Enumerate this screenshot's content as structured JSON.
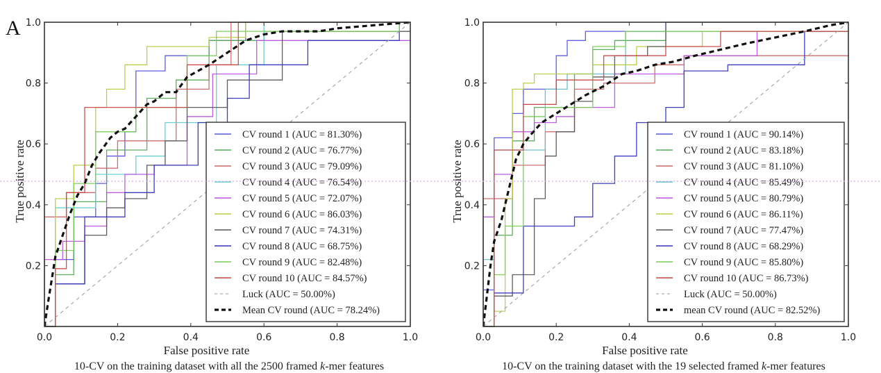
{
  "figure": {
    "panel_letter": "A",
    "artifact_line_colors": [
      "#e6a0e6",
      "#a0e6a0",
      "#a0a0ff",
      "#ffb0b0"
    ]
  },
  "chart_data": [
    {
      "type": "line",
      "title": "",
      "caption_parts": [
        "10-CV on the training dataset with all the 2500 framed ",
        "k",
        "-mer features"
      ],
      "xlabel": "False positive rate",
      "ylabel": "True positive rate",
      "xlim": [
        0.0,
        1.0
      ],
      "ylim": [
        0.0,
        1.0
      ],
      "xticks": [
        "0.0",
        "0.2",
        "0.4",
        "0.6",
        "0.8",
        "1.0"
      ],
      "yticks": [
        "0.2",
        "0.4",
        "0.6",
        "0.8",
        "1.0"
      ],
      "grid": false,
      "legend_position": "lower-right",
      "series": [
        {
          "name": "CV round 1 (AUC = 81.30%)",
          "color": "#5555dd",
          "style": "solid",
          "x": [
            0,
            0.03,
            0.03,
            0.08,
            0.08,
            0.14,
            0.14,
            0.17,
            0.17,
            0.22,
            0.22,
            0.25,
            0.25,
            0.33,
            0.33,
            0.45,
            0.45,
            0.55,
            0.55,
            1.0
          ],
          "y": [
            0,
            0,
            0.22,
            0.22,
            0.36,
            0.36,
            0.47,
            0.47,
            0.56,
            0.56,
            0.64,
            0.64,
            0.84,
            0.84,
            0.89,
            0.89,
            0.94,
            0.94,
            1.0,
            1.0
          ]
        },
        {
          "name": "CV round 2 (AUC = 76.77%)",
          "color": "#55aa55",
          "style": "solid",
          "x": [
            0,
            0.03,
            0.03,
            0.08,
            0.08,
            0.17,
            0.17,
            0.28,
            0.28,
            0.36,
            0.36,
            0.45,
            0.45,
            0.6,
            0.6,
            1.0
          ],
          "y": [
            0,
            0,
            0.17,
            0.17,
            0.41,
            0.41,
            0.58,
            0.58,
            0.75,
            0.75,
            0.81,
            0.81,
            0.94,
            0.94,
            0.97,
            0.97
          ]
        },
        {
          "name": "CV round 3 (AUC = 79.09%)",
          "color": "#cc6666",
          "style": "solid",
          "x": [
            0,
            0,
            0.06,
            0.06,
            0.14,
            0.14,
            0.2,
            0.2,
            0.36,
            0.36,
            0.45,
            0.45,
            0.51,
            0.51,
            1.0
          ],
          "y": [
            0,
            0.36,
            0.36,
            0.44,
            0.44,
            0.52,
            0.52,
            0.61,
            0.61,
            0.78,
            0.78,
            0.86,
            0.86,
            1.0,
            1.0
          ]
        },
        {
          "name": "CV round 4 (AUC = 76.54%)",
          "color": "#66cccc",
          "style": "solid",
          "x": [
            0,
            0.03,
            0.03,
            0.14,
            0.14,
            0.25,
            0.25,
            0.33,
            0.33,
            0.47,
            0.47,
            0.6,
            0.6,
            1.0
          ],
          "y": [
            0,
            0,
            0.39,
            0.39,
            0.5,
            0.5,
            0.56,
            0.56,
            0.67,
            0.67,
            0.86,
            0.86,
            1.0,
            1.0
          ]
        },
        {
          "name": "CV round 5 (AUC = 72.07%)",
          "color": "#bb55dd",
          "style": "solid",
          "x": [
            0,
            0,
            0.05,
            0.05,
            0.11,
            0.11,
            0.17,
            0.17,
            0.22,
            0.22,
            0.3,
            0.3,
            0.39,
            0.39,
            0.46,
            0.46,
            0.58,
            0.58,
            1.0
          ],
          "y": [
            0,
            0.22,
            0.22,
            0.28,
            0.28,
            0.33,
            0.33,
            0.44,
            0.44,
            0.5,
            0.5,
            0.53,
            0.53,
            0.69,
            0.69,
            0.83,
            0.83,
            0.94,
            0.94
          ]
        },
        {
          "name": "CV round 6 (AUC = 86.03%)",
          "color": "#bbcc44",
          "style": "solid",
          "x": [
            0,
            0.03,
            0.03,
            0.08,
            0.08,
            0.14,
            0.14,
            0.17,
            0.17,
            0.22,
            0.22,
            0.28,
            0.28,
            0.45,
            0.45,
            0.55,
            0.55,
            1.0
          ],
          "y": [
            0,
            0,
            0.42,
            0.42,
            0.53,
            0.53,
            0.72,
            0.72,
            0.78,
            0.78,
            0.86,
            0.86,
            0.92,
            0.92,
            0.95,
            0.95,
            1.0,
            1.0
          ]
        },
        {
          "name": "CV round 7 (AUC = 74.31%)",
          "color": "#555555",
          "style": "solid",
          "x": [
            0,
            0.03,
            0.03,
            0.11,
            0.11,
            0.17,
            0.17,
            0.22,
            0.22,
            0.28,
            0.28,
            0.33,
            0.33,
            0.39,
            0.39,
            0.5,
            0.5,
            0.65,
            0.65,
            1.0
          ],
          "y": [
            0,
            0,
            0.14,
            0.14,
            0.3,
            0.3,
            0.39,
            0.39,
            0.42,
            0.42,
            0.53,
            0.53,
            0.61,
            0.61,
            0.72,
            0.72,
            0.81,
            0.81,
            0.97,
            0.97
          ]
        },
        {
          "name": "CV round 8 (AUC = 68.75%)",
          "color": "#3333bb",
          "style": "solid",
          "x": [
            0,
            0.03,
            0.03,
            0.11,
            0.11,
            0.22,
            0.22,
            0.3,
            0.3,
            0.42,
            0.42,
            0.5,
            0.5,
            0.56,
            0.56,
            0.72,
            0.72,
            0.97,
            0.97
          ],
          "y": [
            0,
            0,
            0.14,
            0.14,
            0.36,
            0.36,
            0.44,
            0.44,
            0.53,
            0.53,
            0.67,
            0.67,
            0.75,
            0.75,
            0.86,
            0.86,
            0.94,
            0.94,
            1.0
          ]
        },
        {
          "name": "CV round 9 (AUC = 82.48%)",
          "color": "#77cc55",
          "style": "solid",
          "x": [
            0,
            0.03,
            0.03,
            0.08,
            0.08,
            0.14,
            0.14,
            0.25,
            0.25,
            0.39,
            0.39,
            0.47,
            0.47,
            0.97,
            0.97
          ],
          "y": [
            0,
            0,
            0.25,
            0.25,
            0.47,
            0.47,
            0.64,
            0.64,
            0.72,
            0.72,
            0.89,
            0.89,
            0.97,
            0.97,
            1.0
          ]
        },
        {
          "name": "CV round 10 (AUC = 84.57%)",
          "color": "#cc4444",
          "style": "solid",
          "x": [
            0,
            0.03,
            0.03,
            0.06,
            0.06,
            0.11,
            0.11,
            0.2,
            0.2,
            0.39,
            0.39,
            0.53,
            0.53,
            1.0
          ],
          "y": [
            0,
            0,
            0.19,
            0.19,
            0.44,
            0.44,
            0.72,
            0.72,
            0.72,
            0.72,
            0.86,
            0.86,
            1.0,
            1.0
          ]
        },
        {
          "name": "Luck (AUC = 50.00%)",
          "color": "#999999",
          "style": "dashed-thin",
          "x": [
            0,
            1
          ],
          "y": [
            0,
            1
          ]
        },
        {
          "name": "Mean CV round (AUC = 78.24%)",
          "color": "#111111",
          "style": "dashed-thick",
          "x": [
            0,
            0.01,
            0.03,
            0.05,
            0.07,
            0.09,
            0.11,
            0.13,
            0.15,
            0.18,
            0.2,
            0.22,
            0.25,
            0.28,
            0.3,
            0.33,
            0.36,
            0.39,
            0.42,
            0.45,
            0.5,
            0.55,
            0.6,
            0.65,
            0.7,
            0.75,
            0.8,
            0.9,
            1.0
          ],
          "y": [
            0,
            0.08,
            0.23,
            0.3,
            0.37,
            0.43,
            0.47,
            0.53,
            0.57,
            0.62,
            0.64,
            0.65,
            0.69,
            0.73,
            0.74,
            0.77,
            0.77,
            0.82,
            0.84,
            0.86,
            0.9,
            0.94,
            0.96,
            0.97,
            0.97,
            0.97,
            0.98,
            0.99,
            1.0
          ]
        }
      ]
    },
    {
      "type": "line",
      "title": "",
      "caption_parts": [
        "10-CV on the training dataset with the 19 selected framed ",
        "k",
        "-mer features"
      ],
      "xlabel": "False positive rate",
      "ylabel": "True positive rate",
      "xlim": [
        0.0,
        1.0
      ],
      "ylim": [
        0.0,
        1.0
      ],
      "xticks": [
        "0.0",
        "0.2",
        "0.4",
        "0.6",
        "0.8",
        "1.0"
      ],
      "yticks": [
        "0.2",
        "0.4",
        "0.6",
        "0.8",
        "1.0"
      ],
      "grid": false,
      "legend_position": "lower-right",
      "series": [
        {
          "name": "CV round 1 (AUC = 90.14%)",
          "color": "#5555dd",
          "style": "solid",
          "x": [
            0,
            0,
            0.03,
            0.03,
            0.08,
            0.08,
            0.11,
            0.11,
            0.14,
            0.14,
            0.2,
            0.2,
            0.23,
            0.23,
            0.28,
            0.28,
            0.5,
            0.5
          ],
          "y": [
            0,
            0.12,
            0.12,
            0.62,
            0.62,
            0.7,
            0.7,
            0.78,
            0.78,
            0.78,
            0.78,
            0.89,
            0.89,
            0.94,
            0.94,
            0.97,
            0.97,
            1.0
          ]
        },
        {
          "name": "CV round 2 (AUC = 83.18%)",
          "color": "#55aa55",
          "style": "solid",
          "x": [
            0,
            0.03,
            0.03,
            0.08,
            0.08,
            0.14,
            0.14,
            0.25,
            0.25,
            0.3,
            0.3,
            0.36,
            0.36,
            0.5,
            0.5,
            1.0
          ],
          "y": [
            0,
            0,
            0.3,
            0.3,
            0.61,
            0.61,
            0.72,
            0.72,
            0.83,
            0.83,
            0.91,
            0.91,
            0.94,
            0.94,
            0.97,
            0.97
          ]
        },
        {
          "name": "CV round 3 (AUC = 81.10%)",
          "color": "#cc6666",
          "style": "solid",
          "x": [
            0,
            0,
            0.08,
            0.08,
            0.17,
            0.17,
            0.25,
            0.25,
            0.33,
            0.33,
            0.47,
            0.47,
            0.55,
            0.55,
            1.0
          ],
          "y": [
            0,
            0.42,
            0.42,
            0.53,
            0.53,
            0.64,
            0.64,
            0.78,
            0.78,
            0.8,
            0.8,
            0.86,
            0.86,
            0.89,
            0.89
          ]
        },
        {
          "name": "CV round 4 (AUC = 85.49%)",
          "color": "#66bbcc",
          "style": "solid",
          "x": [
            0,
            0,
            0.03,
            0.03,
            0.11,
            0.11,
            0.17,
            0.17,
            0.23,
            0.23,
            0.39,
            0.39,
            1.0
          ],
          "y": [
            0,
            0.22,
            0.22,
            0.58,
            0.58,
            0.58,
            0.58,
            0.78,
            0.78,
            0.83,
            0.83,
            0.97,
            0.97
          ]
        },
        {
          "name": "CV round 5 (AUC = 80.79%)",
          "color": "#bb55dd",
          "style": "solid",
          "x": [
            0,
            0,
            0.03,
            0.03,
            0.08,
            0.08,
            0.14,
            0.14,
            0.2,
            0.2,
            0.25,
            0.25,
            0.36,
            0.36,
            0.55,
            0.55,
            0.75,
            0.75,
            1.0
          ],
          "y": [
            0,
            0.36,
            0.36,
            0.5,
            0.5,
            0.64,
            0.64,
            0.67,
            0.67,
            0.69,
            0.69,
            0.72,
            0.72,
            0.83,
            0.83,
            0.89,
            0.89,
            0.97,
            0.97
          ]
        },
        {
          "name": "CV round 6 (AUC = 86.11%)",
          "color": "#bbcc44",
          "style": "solid",
          "x": [
            0,
            0.03,
            0.03,
            0.06,
            0.06,
            0.08,
            0.08,
            0.11,
            0.11,
            0.14,
            0.14,
            0.3,
            0.3,
            0.42,
            0.42,
            0.6,
            0.6,
            1.0
          ],
          "y": [
            0,
            0,
            0.05,
            0.05,
            0.42,
            0.42,
            0.78,
            0.78,
            0.8,
            0.8,
            0.83,
            0.83,
            0.86,
            0.86,
            0.92,
            0.92,
            0.97,
            0.97
          ]
        },
        {
          "name": "CV round 7 (AUC = 77.47%)",
          "color": "#555555",
          "style": "solid",
          "x": [
            0,
            0.03,
            0.03,
            0.08,
            0.08,
            0.14,
            0.14,
            0.17,
            0.17,
            0.2,
            0.2,
            0.25,
            0.25,
            0.3,
            0.3,
            0.36,
            0.36,
            0.45,
            0.45,
            0.5,
            0.5,
            1.0
          ],
          "y": [
            0,
            0,
            0.1,
            0.1,
            0.17,
            0.17,
            0.42,
            0.42,
            0.56,
            0.56,
            0.64,
            0.64,
            0.74,
            0.74,
            0.82,
            0.82,
            0.89,
            0.89,
            0.92,
            0.92,
            1.0,
            1.0
          ]
        },
        {
          "name": "CV round 8 (AUC = 68.29%)",
          "color": "#3333bb",
          "style": "solid",
          "x": [
            0,
            0.03,
            0.03,
            0.11,
            0.11,
            0.25,
            0.25,
            0.3,
            0.3,
            0.36,
            0.36,
            0.42,
            0.42,
            0.5,
            0.5,
            0.55,
            0.55,
            0.67,
            0.67,
            0.88,
            0.88,
            1.0
          ],
          "y": [
            0,
            0,
            0.11,
            0.11,
            0.33,
            0.33,
            0.36,
            0.36,
            0.47,
            0.47,
            0.56,
            0.56,
            0.67,
            0.67,
            0.72,
            0.72,
            0.84,
            0.84,
            0.86,
            0.86,
            0.97,
            0.97
          ]
        },
        {
          "name": "CV round 9 (AUC = 85.80%)",
          "color": "#77cc55",
          "style": "solid",
          "x": [
            0,
            0.03,
            0.03,
            0.06,
            0.06,
            0.11,
            0.11,
            0.17,
            0.17,
            0.3,
            0.3,
            0.39,
            0.39,
            1.0
          ],
          "y": [
            0,
            0,
            0.17,
            0.17,
            0.33,
            0.33,
            0.69,
            0.69,
            0.72,
            0.72,
            0.92,
            0.92,
            0.97,
            0.97
          ]
        },
        {
          "name": "CV round 10 (AUC = 86.73%)",
          "color": "#cc4444",
          "style": "solid",
          "x": [
            0,
            0.03,
            0.03,
            0.11,
            0.11,
            0.2,
            0.2,
            0.33,
            0.33,
            0.5,
            0.5,
            0.65,
            0.65,
            1.0
          ],
          "y": [
            0,
            0,
            0.58,
            0.58,
            0.73,
            0.73,
            0.81,
            0.81,
            0.89,
            0.89,
            0.92,
            0.92,
            0.97,
            0.97
          ]
        },
        {
          "name": "Luck (AUC = 50.00%)",
          "color": "#999999",
          "style": "dashed-thin",
          "x": [
            0,
            1
          ],
          "y": [
            0,
            1
          ]
        },
        {
          "name": "mean CV round (AUC = 82.52%)",
          "color": "#111111",
          "style": "dashed-thick",
          "x": [
            0,
            0.01,
            0.02,
            0.03,
            0.05,
            0.07,
            0.09,
            0.11,
            0.13,
            0.16,
            0.2,
            0.24,
            0.28,
            0.33,
            0.38,
            0.42,
            0.47,
            0.52,
            0.58,
            0.65,
            0.72,
            0.8,
            0.88,
            0.95,
            1.0
          ],
          "y": [
            0,
            0.1,
            0.2,
            0.28,
            0.35,
            0.45,
            0.55,
            0.6,
            0.63,
            0.67,
            0.7,
            0.73,
            0.76,
            0.79,
            0.83,
            0.84,
            0.86,
            0.87,
            0.89,
            0.91,
            0.93,
            0.95,
            0.97,
            0.99,
            1.0
          ]
        }
      ]
    }
  ]
}
